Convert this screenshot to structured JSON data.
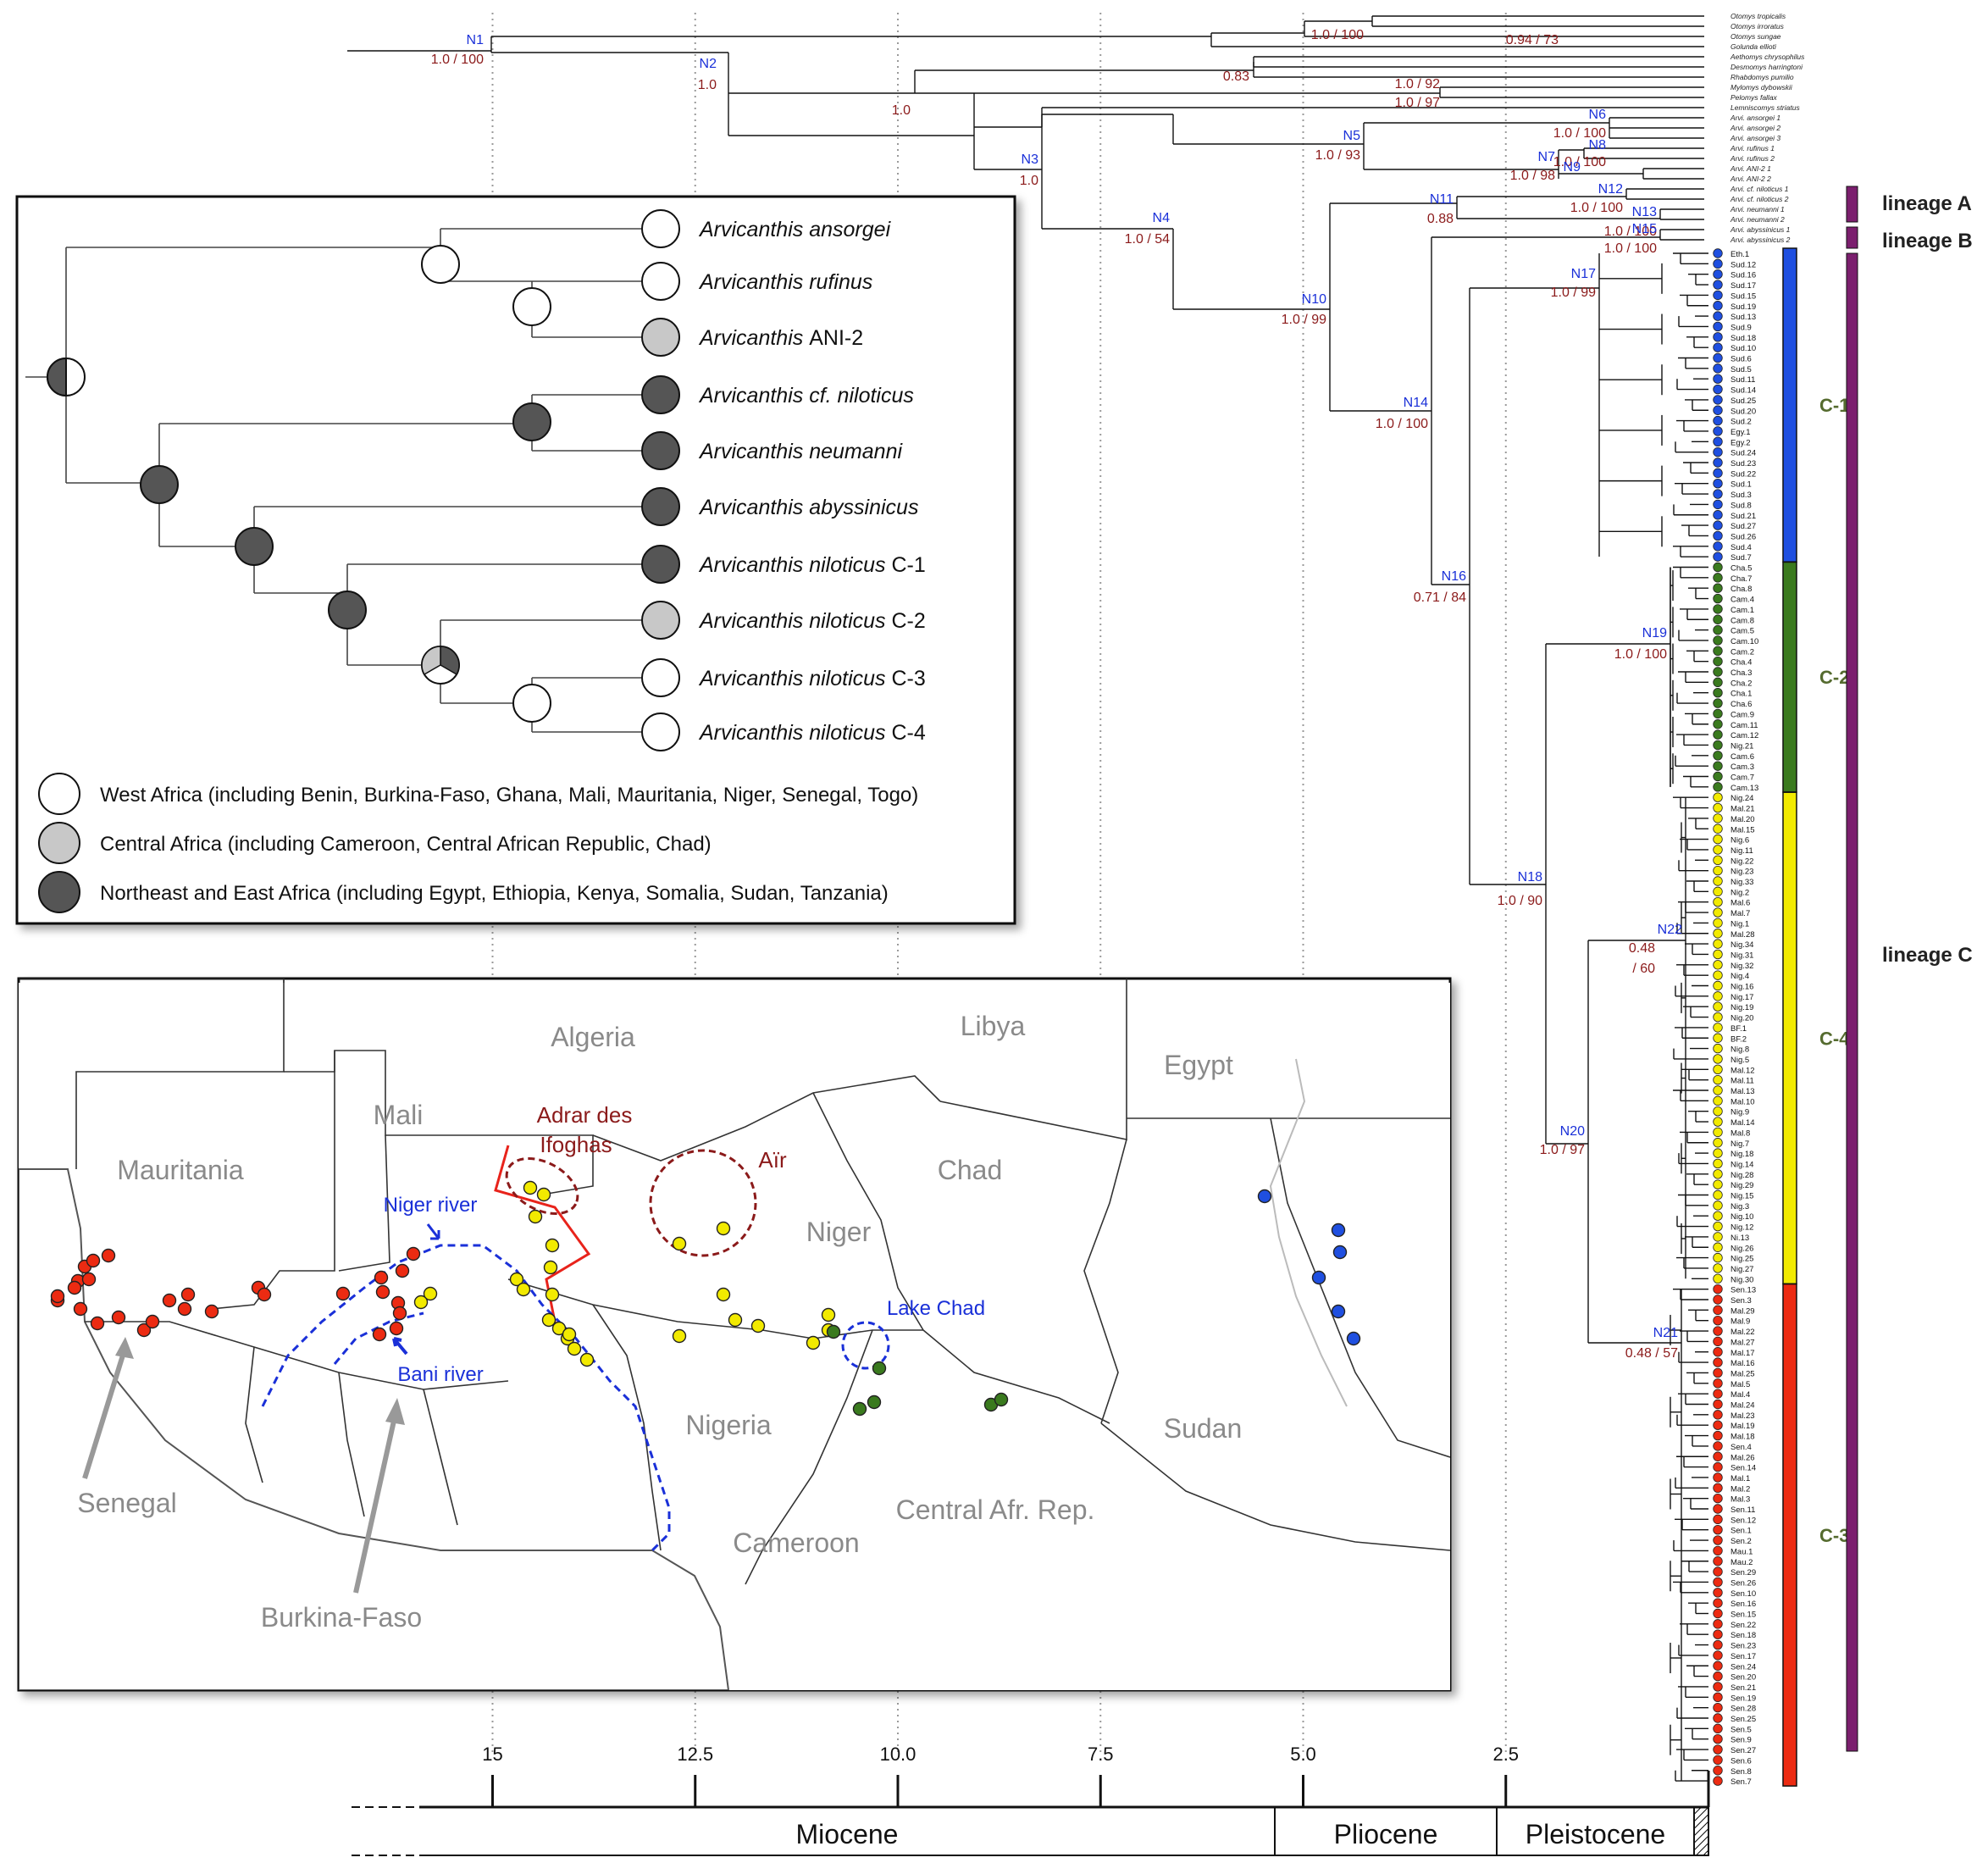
{
  "nodes": [
    {
      "id": "N1",
      "support": "1.0 / 100"
    },
    {
      "id": "N2",
      "support": "1.0"
    },
    {
      "id": "N3",
      "support": "1.0"
    },
    {
      "id": "N4",
      "support": "1.0 / 54"
    },
    {
      "id": "N5",
      "support": "1.0 / 93"
    },
    {
      "id": "N6",
      "support": "1.0 / 100"
    },
    {
      "id": "N7",
      "support": "1.0 / 98"
    },
    {
      "id": "N8",
      "support": "1.0 / 100"
    },
    {
      "id": "N9",
      "support": ""
    },
    {
      "id": "N10",
      "support": "1.0 / 99"
    },
    {
      "id": "N11",
      "support": "0.88"
    },
    {
      "id": "N12",
      "support": "1.0 / 100"
    },
    {
      "id": "N13",
      "support": "1.0 / 100"
    },
    {
      "id": "N14",
      "support": "1.0 / 100"
    },
    {
      "id": "N15",
      "support": "1.0 / 100"
    },
    {
      "id": "N16",
      "support": "0.71 / 84"
    },
    {
      "id": "N17",
      "support": "1.0 / 99"
    },
    {
      "id": "N18",
      "support": "1.0 / 90"
    },
    {
      "id": "N19",
      "support": "1.0 / 100"
    },
    {
      "id": "N20",
      "support": "1.0 / 97"
    },
    {
      "id": "N21",
      "support": "0.48 / 57"
    },
    {
      "id": "N22",
      "support": "0.48 / 60"
    }
  ],
  "extra_supports": [
    "1.0 / 100",
    "0.94 / 73",
    "0.83",
    "1.0 / 92",
    "1.0 / 97",
    "1.0"
  ],
  "outgroups": [
    "Otomys tropicalis",
    "Otomys irroratus",
    "Otomys sungae",
    "Golunda ellioti",
    "Aethomys chrysophilus",
    "Desmomys harringtoni",
    "Rhabdomys pumilio",
    "Mylomys dybowskii",
    "Pelomys fallax",
    "Lemniscomys striatus"
  ],
  "arvi_tips": [
    "Arvi. ansorgei 1",
    "Arvi. ansorgei 2",
    "Arvi. ansorgei 3",
    "Arvi. rufinus 1",
    "Arvi. rufinus 2",
    "Arvi. ANI-2 1",
    "Arvi. ANI-2 2",
    "Arvi. cf. niloticus 1",
    "Arvi. cf. niloticus 2",
    "Arvi. neumanni 1",
    "Arvi. neumanni 2",
    "Arvi. abyssinicus 1",
    "Arvi. abyssinicus 2"
  ],
  "clades": [
    {
      "name": "C-1",
      "color": "#1f4fe0",
      "tips": [
        "Eth.1",
        "Sud.12",
        "Sud.16",
        "Sud.17",
        "Sud.15",
        "Sud.19",
        "Sud.13",
        "Sud.9",
        "Sud.18",
        "Sud.10",
        "Sud.6",
        "Sud.5",
        "Sud.11",
        "Sud.14",
        "Sud.25",
        "Sud.20",
        "Sud.2",
        "Egy.1",
        "Egy.2",
        "Sud.24",
        "Sud.23",
        "Sud.22",
        "Sud.1",
        "Sud.3",
        "Sud.8",
        "Sud.21",
        "Sud.27",
        "Sud.26",
        "Sud.4",
        "Sud.7"
      ]
    },
    {
      "name": "C-2",
      "color": "#3a7a1e",
      "tips": [
        "Cha.5",
        "Cha.7",
        "Cha.8",
        "Cam.4",
        "Cam.1",
        "Cam.8",
        "Cam.5",
        "Cam.10",
        "Cam.2",
        "Cha.4",
        "Cha.3",
        "Cha.2",
        "Cha.1",
        "Cha.6",
        "Cam.9",
        "Cam.11",
        "Cam.12",
        "Nig.21",
        "Cam.6",
        "Cam.3",
        "Cam.7",
        "Cam.13"
      ]
    },
    {
      "name": "C-4",
      "color": "#f2ea00",
      "tips": [
        "Nig.24",
        "Mal.21",
        "Mal.20",
        "Mal.15",
        "Nig.6",
        "Nig.11",
        "Nig.22",
        "Nig.23",
        "Nig.33",
        "Nig.2",
        "Mal.6",
        "Mal.7",
        "Nig.1",
        "Mal.28",
        "Nig.34",
        "Nig.31",
        "Nig.32",
        "Nig.4",
        "Nig.16",
        "Nig.17",
        "Nig.19",
        "Nig.20",
        "BF.1",
        "BF.2",
        "Nig.8",
        "Nig.5",
        "Mal.12",
        "Mal.11",
        "Mal.13",
        "Mal.10",
        "Nig.9",
        "Mal.14",
        "Mal.8",
        "Nig.7",
        "Nig.18",
        "Nig.14",
        "Nig.28",
        "Nig.29",
        "Nig.15",
        "Nig.3",
        "Nig.10",
        "Nig.12",
        "Ni.13",
        "Nig.26",
        "Nig.25",
        "Nig.27",
        "Nig.30"
      ]
    },
    {
      "name": "C-3",
      "color": "#ec2b12",
      "tips": [
        "Sen.13",
        "Sen.3",
        "Mal.29",
        "Mal.9",
        "Mal.22",
        "Mal.27",
        "Mal.17",
        "Mal.16",
        "Mal.25",
        "Mal.5",
        "Mal.4",
        "Mal.24",
        "Mal.23",
        "Mal.19",
        "Mal.18",
        "Sen.4",
        "Mal.26",
        "Sen.14",
        "Mal.1",
        "Mal.2",
        "Mal.3",
        "Sen.11",
        "Sen.12",
        "Sen.1",
        "Sen.2",
        "Mau.1",
        "Mau.2",
        "Sen.29",
        "Sen.26",
        "Sen.10",
        "Sen.16",
        "Sen.15",
        "Sen.22",
        "Sen.18",
        "Sen.23",
        "Sen.17",
        "Sen.24",
        "Sen.20",
        "Sen.21",
        "Sen.19",
        "Sen.28",
        "Sen.25",
        "Sen.5",
        "Sen.9",
        "Sen.27",
        "Sen.6",
        "Sen.8",
        "Sen.7"
      ]
    }
  ],
  "lineages": [
    {
      "label": "lineage A",
      "color": "#7b1f6e"
    },
    {
      "label": "lineage B",
      "color": "#7b1f6e"
    },
    {
      "label": "lineage C",
      "color": "#7b1f6e"
    }
  ],
  "inset": {
    "species": [
      {
        "genus": "Arvicanthis",
        "epithet": "ansorgei",
        "suffix": "",
        "state": "W"
      },
      {
        "genus": "Arvicanthis",
        "epithet": "rufinus",
        "suffix": "",
        "state": "W"
      },
      {
        "genus": "Arvicanthis",
        "epithet": "",
        "suffix": "ANI-2",
        "state": "C"
      },
      {
        "genus": "Arvicanthis",
        "epithet": "cf. niloticus",
        "suffix": "",
        "state": "E"
      },
      {
        "genus": "Arvicanthis",
        "epithet": "neumanni",
        "suffix": "",
        "state": "E"
      },
      {
        "genus": "Arvicanthis",
        "epithet": "abyssinicus",
        "suffix": "",
        "state": "E"
      },
      {
        "genus": "Arvicanthis",
        "epithet": "niloticus",
        "suffix": "C-1",
        "state": "E"
      },
      {
        "genus": "Arvicanthis",
        "epithet": "niloticus",
        "suffix": "C-2",
        "state": "C"
      },
      {
        "genus": "Arvicanthis",
        "epithet": "niloticus",
        "suffix": "C-3",
        "state": "W"
      },
      {
        "genus": "Arvicanthis",
        "epithet": "niloticus",
        "suffix": "C-4",
        "state": "W"
      }
    ],
    "legend": [
      {
        "state": "W",
        "color": "#ffffff",
        "text": "West Africa (including Benin, Burkina-Faso, Ghana, Mali, Mauritania, Niger, Senegal, Togo)"
      },
      {
        "state": "C",
        "color": "#c8c8c8",
        "text": "Central Africa (including Cameroon, Central African Republic, Chad)"
      },
      {
        "state": "E",
        "color": "#555555",
        "text": "Northeast and East Africa (including Egypt, Ethiopia, Kenya, Somalia, Sudan, Tanzania)"
      }
    ]
  },
  "map": {
    "countries": [
      "Algeria",
      "Libya",
      "Egypt",
      "Mali",
      "Mauritania",
      "Niger",
      "Chad",
      "Nigeria",
      "Sudan",
      "Central Afr. Rep.",
      "Cameroon",
      "Senegal",
      "Burkina-Faso"
    ],
    "annotations": {
      "adrar": "Adrar des Ifoghas",
      "air": "Aïr",
      "niger_river": "Niger river",
      "bani_river": "Bani river",
      "lake_chad": "Lake Chad"
    }
  },
  "axis": {
    "ticks": [
      "15",
      "12.5",
      "10.0",
      "7.5",
      "5.0",
      "2.5"
    ],
    "epochs": [
      "Miocene",
      "Pliocene",
      "Pleistocene"
    ]
  }
}
